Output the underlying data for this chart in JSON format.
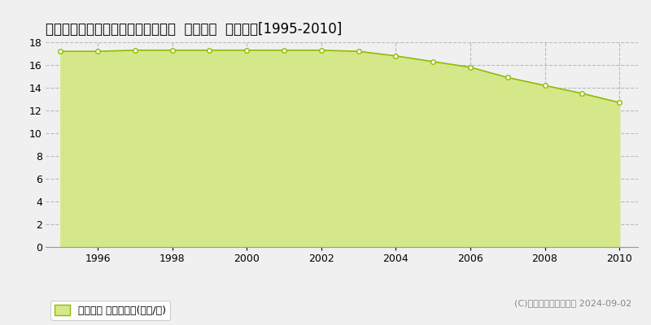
{
  "title": "秋田県秋田市土崎港西３丁目４７番  地価公示  地価推移[1995-2010]",
  "years": [
    1995,
    1996,
    1997,
    1998,
    1999,
    2000,
    2001,
    2002,
    2003,
    2004,
    2005,
    2006,
    2007,
    2008,
    2009,
    2010
  ],
  "values": [
    17.2,
    17.2,
    17.3,
    17.3,
    17.3,
    17.3,
    17.3,
    17.3,
    17.2,
    16.8,
    16.3,
    15.8,
    14.9,
    14.2,
    13.5,
    12.7
  ],
  "line_color": "#8fbc00",
  "fill_color": "#d4e88a",
  "marker_color": "#ffffff",
  "marker_edge_color": "#8fbc00",
  "background_color": "#f0f0f0",
  "grid_color": "#bbbbbb",
  "ylim": [
    0,
    18
  ],
  "yticks": [
    0,
    2,
    4,
    6,
    8,
    10,
    12,
    14,
    16,
    18
  ],
  "xlim_min": 1994.6,
  "xlim_max": 2010.5,
  "legend_label": "地価公示 平均坪単価(万円/坪)",
  "copyright_text": "(C)土地価格ドットコム 2024-09-02",
  "title_fontsize": 12,
  "axis_fontsize": 9,
  "legend_fontsize": 9,
  "copyright_fontsize": 8
}
